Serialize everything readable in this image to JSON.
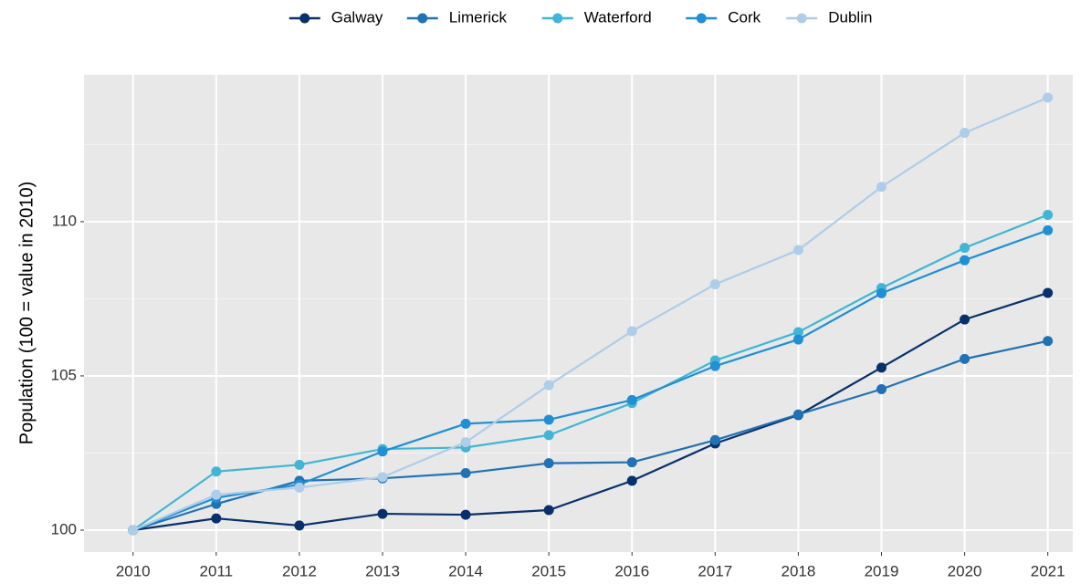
{
  "chart_data": {
    "type": "line",
    "ylabel": "Population (100 = value in 2010)",
    "x": [
      2010,
      2011,
      2012,
      2013,
      2014,
      2015,
      2016,
      2017,
      2018,
      2019,
      2020,
      2021
    ],
    "xlim": [
      2009.41,
      2021.3
    ],
    "xticks": [
      2010,
      2011,
      2012,
      2013,
      2014,
      2015,
      2016,
      2017,
      2018,
      2019,
      2020,
      2021
    ],
    "ylim": [
      99.29,
      114.76
    ],
    "yticks": [
      100,
      105,
      110
    ],
    "minor_yticks": [
      102.5,
      107.5,
      112.5
    ],
    "grid": true,
    "legend": "top",
    "series": [
      {
        "name": "Galway",
        "color": "#08306b",
        "values": [
          100,
          100.38,
          100.15,
          100.53,
          100.5,
          100.65,
          101.6,
          102.81,
          103.73,
          105.27,
          106.83,
          107.69
        ]
      },
      {
        "name": "Limerick",
        "color": "#2171b5",
        "values": [
          100,
          100.85,
          101.6,
          101.68,
          101.85,
          102.17,
          102.2,
          102.92,
          103.75,
          104.57,
          105.55,
          106.13
        ]
      },
      {
        "name": "Waterford",
        "color": "#41b6d4",
        "values": [
          100,
          101.9,
          102.12,
          102.63,
          102.68,
          103.08,
          104.12,
          105.5,
          106.42,
          107.85,
          109.15,
          110.22
        ]
      },
      {
        "name": "Cork",
        "color": "#1f8fd6",
        "values": [
          100,
          101.05,
          101.48,
          102.55,
          103.45,
          103.58,
          104.22,
          105.32,
          106.18,
          107.68,
          108.75,
          109.72
        ]
      },
      {
        "name": "Dublin",
        "color": "#aecde9",
        "values": [
          100,
          101.15,
          101.38,
          101.72,
          102.85,
          104.7,
          106.45,
          107.97,
          109.08,
          111.13,
          112.88,
          114.02
        ]
      }
    ]
  }
}
